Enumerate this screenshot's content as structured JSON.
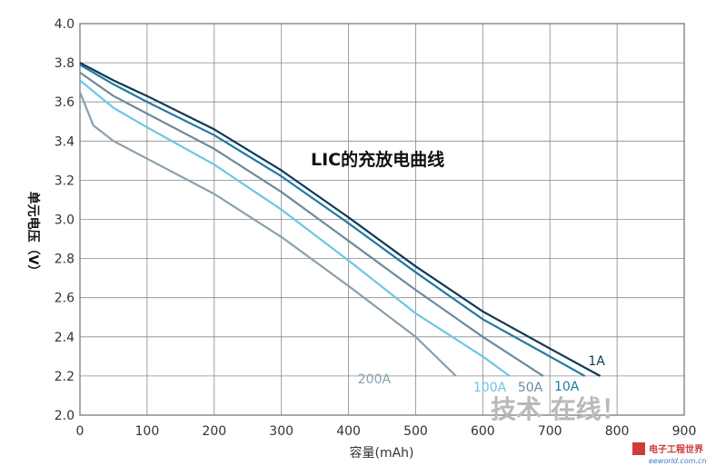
{
  "chart_data": {
    "type": "line",
    "title": "LIC的充放电曲线",
    "xlabel": "容量(mAh)",
    "ylabel": "单元电压（V）",
    "xlim": [
      0,
      900
    ],
    "ylim": [
      2.0,
      4.0
    ],
    "xticks": [
      "0",
      "100",
      "200",
      "300",
      "400",
      "500",
      "600",
      "700",
      "800",
      "900"
    ],
    "yticks": [
      "2.0",
      "2.2",
      "2.4",
      "2.6",
      "2.8",
      "3.0",
      "3.2",
      "3.4",
      "3.6",
      "3.8",
      "4.0"
    ],
    "grid": true,
    "series": [
      {
        "name": "1A",
        "color": "#0d3a55",
        "points": [
          [
            0,
            3.8
          ],
          [
            50,
            3.71
          ],
          [
            100,
            3.63
          ],
          [
            200,
            3.46
          ],
          [
            300,
            3.25
          ],
          [
            400,
            3.01
          ],
          [
            500,
            2.76
          ],
          [
            600,
            2.53
          ],
          [
            700,
            2.34
          ],
          [
            775,
            2.2
          ]
        ]
      },
      {
        "name": "10A",
        "color": "#1f7aa0",
        "points": [
          [
            0,
            3.79
          ],
          [
            50,
            3.69
          ],
          [
            100,
            3.6
          ],
          [
            200,
            3.43
          ],
          [
            300,
            3.22
          ],
          [
            400,
            2.98
          ],
          [
            500,
            2.73
          ],
          [
            600,
            2.49
          ],
          [
            700,
            2.3
          ],
          [
            752,
            2.2
          ]
        ]
      },
      {
        "name": "50A",
        "color": "#6f8a9c",
        "points": [
          [
            0,
            3.75
          ],
          [
            50,
            3.63
          ],
          [
            100,
            3.54
          ],
          [
            200,
            3.36
          ],
          [
            300,
            3.14
          ],
          [
            400,
            2.89
          ],
          [
            500,
            2.64
          ],
          [
            600,
            2.4
          ],
          [
            690,
            2.2
          ]
        ]
      },
      {
        "name": "100A",
        "color": "#6cc6e6",
        "points": [
          [
            0,
            3.71
          ],
          [
            50,
            3.57
          ],
          [
            100,
            3.47
          ],
          [
            200,
            3.28
          ],
          [
            300,
            3.05
          ],
          [
            400,
            2.79
          ],
          [
            500,
            2.52
          ],
          [
            600,
            2.3
          ],
          [
            640,
            2.2
          ]
        ]
      },
      {
        "name": "200A",
        "color": "#8aa0ae",
        "points": [
          [
            0,
            3.65
          ],
          [
            20,
            3.48
          ],
          [
            50,
            3.4
          ],
          [
            100,
            3.31
          ],
          [
            200,
            3.13
          ],
          [
            300,
            2.91
          ],
          [
            400,
            2.66
          ],
          [
            500,
            2.4
          ],
          [
            560,
            2.2
          ]
        ]
      }
    ],
    "annotations": [
      "1A",
      "10A",
      "50A",
      "100A",
      "200A"
    ]
  },
  "watermark": {
    "text": "技术 在线！"
  },
  "logo": {
    "title": "电子工程世界",
    "site": "eeworld.com.cn"
  }
}
